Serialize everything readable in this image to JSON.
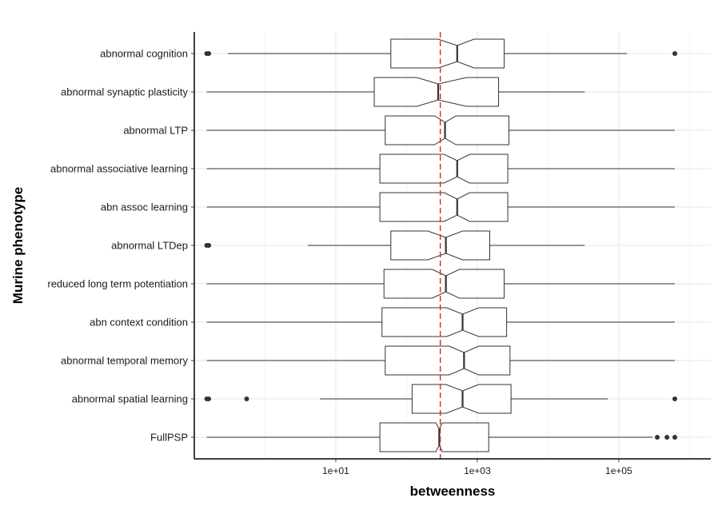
{
  "chart_data": {
    "type": "boxplot",
    "orientation": "horizontal",
    "xlabel": "betweenness",
    "ylabel": "Murine phenotype",
    "x_scale": "log10",
    "xlim": [
      0.1,
      2000000
    ],
    "x_ticks": [
      {
        "value": 10,
        "label": "1e+01"
      },
      {
        "value": 1000,
        "label": "1e+03"
      },
      {
        "value": 100000,
        "label": "1e+05"
      }
    ],
    "reference_line": {
      "value": 300,
      "style": "dashed",
      "color": "#d62728"
    },
    "grid": "major x and y, light gray",
    "box_color": "#333333",
    "outlier_color": "#333333",
    "categories": [
      {
        "name": "abnormal cognition",
        "whisker_low": 0.3,
        "q1": 60,
        "median": 520,
        "q3": 2400,
        "whisker_high": 130000,
        "notch_low": 280,
        "notch_high": 900,
        "outliers": [
          0.15,
          0.16,
          620000
        ]
      },
      {
        "name": "abnormal synaptic plasticity",
        "whisker_low": 0.15,
        "q1": 35,
        "median": 280,
        "q3": 2000,
        "whisker_high": 33000,
        "notch_low": 140,
        "notch_high": 700,
        "outliers": []
      },
      {
        "name": "abnormal LTP",
        "whisker_low": 0.15,
        "q1": 50,
        "median": 350,
        "q3": 2800,
        "whisker_high": 620000,
        "notch_low": 250,
        "notch_high": 500,
        "outliers": []
      },
      {
        "name": "abnormal associative learning",
        "whisker_low": 0.15,
        "q1": 42,
        "median": 520,
        "q3": 2700,
        "whisker_high": 620000,
        "notch_low": 340,
        "notch_high": 780,
        "outliers": []
      },
      {
        "name": "abn assoc learning",
        "whisker_low": 0.15,
        "q1": 42,
        "median": 520,
        "q3": 2700,
        "whisker_high": 620000,
        "notch_low": 340,
        "notch_high": 780,
        "outliers": []
      },
      {
        "name": "abnormal LTDep",
        "whisker_low": 4,
        "q1": 60,
        "median": 360,
        "q3": 1500,
        "whisker_high": 33000,
        "notch_low": 200,
        "notch_high": 620,
        "outliers": [
          0.15,
          0.16
        ]
      },
      {
        "name": "reduced long term potentiation",
        "whisker_low": 0.15,
        "q1": 48,
        "median": 360,
        "q3": 2400,
        "whisker_high": 620000,
        "notch_low": 230,
        "notch_high": 560,
        "outliers": []
      },
      {
        "name": "abn context condition",
        "whisker_low": 0.15,
        "q1": 45,
        "median": 620,
        "q3": 2600,
        "whisker_high": 620000,
        "notch_low": 370,
        "notch_high": 1050,
        "outliers": []
      },
      {
        "name": "abnormal temporal memory",
        "whisker_low": 0.15,
        "q1": 50,
        "median": 650,
        "q3": 2900,
        "whisker_high": 620000,
        "notch_low": 400,
        "notch_high": 1050,
        "outliers": []
      },
      {
        "name": "abnormal spatial learning",
        "whisker_low": 6,
        "q1": 120,
        "median": 620,
        "q3": 3000,
        "whisker_high": 70000,
        "notch_low": 360,
        "notch_high": 1050,
        "outliers": [
          0.15,
          0.16,
          0.55,
          620000
        ]
      },
      {
        "name": "FullPSP",
        "whisker_low": 0.15,
        "q1": 42,
        "median": 290,
        "q3": 1450,
        "whisker_high": 300000,
        "notch_low": 260,
        "notch_high": 320,
        "outliers": [
          350000,
          480000,
          620000
        ]
      }
    ]
  }
}
